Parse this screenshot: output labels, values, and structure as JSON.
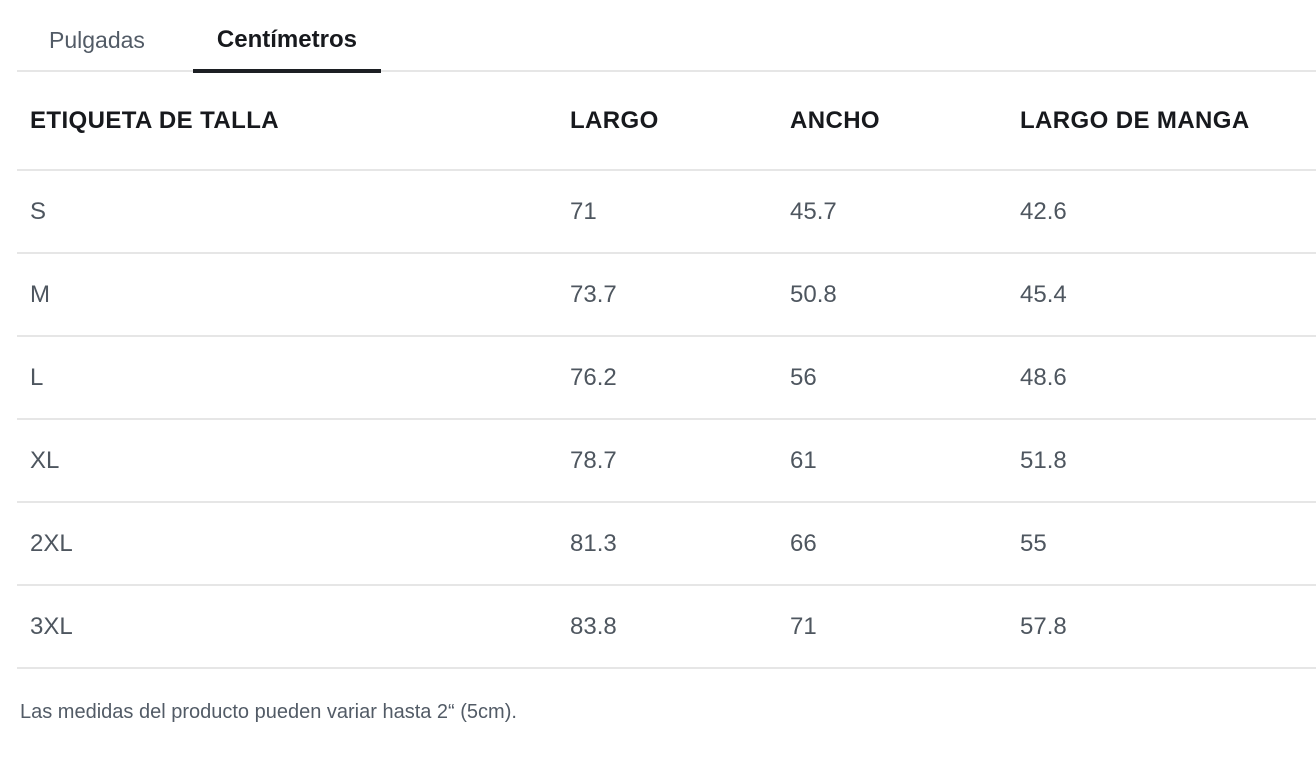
{
  "tabs": {
    "inches": {
      "label": "Pulgadas"
    },
    "centimeters": {
      "label": "Centímetros"
    },
    "active": "Centímetros"
  },
  "table": {
    "columns": [
      "ETIQUETA DE TALLA",
      "LARGO",
      "ANCHO",
      "LARGO DE MANGA"
    ],
    "rows": [
      {
        "size": "S",
        "largo": "71",
        "ancho": "45.7",
        "manga": "42.6"
      },
      {
        "size": "M",
        "largo": "73.7",
        "ancho": "50.8",
        "manga": "45.4"
      },
      {
        "size": "L",
        "largo": "76.2",
        "ancho": "56",
        "manga": "48.6"
      },
      {
        "size": "XL",
        "largo": "78.7",
        "ancho": "61",
        "manga": "51.8"
      },
      {
        "size": "2XL",
        "largo": "81.3",
        "ancho": "66",
        "manga": "55"
      },
      {
        "size": "3XL",
        "largo": "83.8",
        "ancho": "71",
        "manga": "57.8"
      }
    ],
    "unit": "cm"
  },
  "note": "Las medidas del producto pueden variar hasta 2“ (5cm).",
  "colors": {
    "active_tab": "#1c1f23",
    "inactive_text": "#525b66",
    "header_text": "#17191d",
    "divider": "#e6e6e6",
    "background": "#ffffff"
  }
}
